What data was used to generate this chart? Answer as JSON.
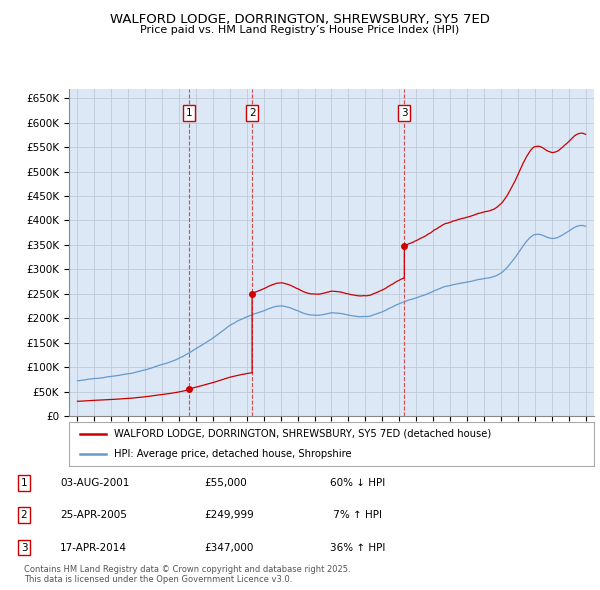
{
  "title": "WALFORD LODGE, DORRINGTON, SHREWSBURY, SY5 7ED",
  "subtitle": "Price paid vs. HM Land Registry’s House Price Index (HPI)",
  "sales": [
    {
      "label": "1",
      "date": "03-AUG-2001",
      "year": 2001.58,
      "price": 55000,
      "hpi_diff": "60% ↓ HPI"
    },
    {
      "label": "2",
      "date": "25-APR-2005",
      "year": 2005.31,
      "price": 249999,
      "hpi_diff": "7% ↑ HPI"
    },
    {
      "label": "3",
      "date": "17-APR-2014",
      "year": 2014.3,
      "price": 347000,
      "hpi_diff": "36% ↑ HPI"
    }
  ],
  "legend_line1": "WALFORD LODGE, DORRINGTON, SHREWSBURY, SY5 7ED (detached house)",
  "legend_line2": "HPI: Average price, detached house, Shropshire",
  "footer": "Contains HM Land Registry data © Crown copyright and database right 2025.\nThis data is licensed under the Open Government Licence v3.0.",
  "ylim": [
    0,
    670000
  ],
  "yticks": [
    0,
    50000,
    100000,
    150000,
    200000,
    250000,
    300000,
    350000,
    400000,
    450000,
    500000,
    550000,
    600000,
    650000
  ],
  "xlim_start": 1994.5,
  "xlim_end": 2025.5,
  "plot_bg_color": "#dce8f5",
  "red_line_color": "#cc0000",
  "blue_line_color": "#6699cc",
  "dashed_color": "#cc3333"
}
